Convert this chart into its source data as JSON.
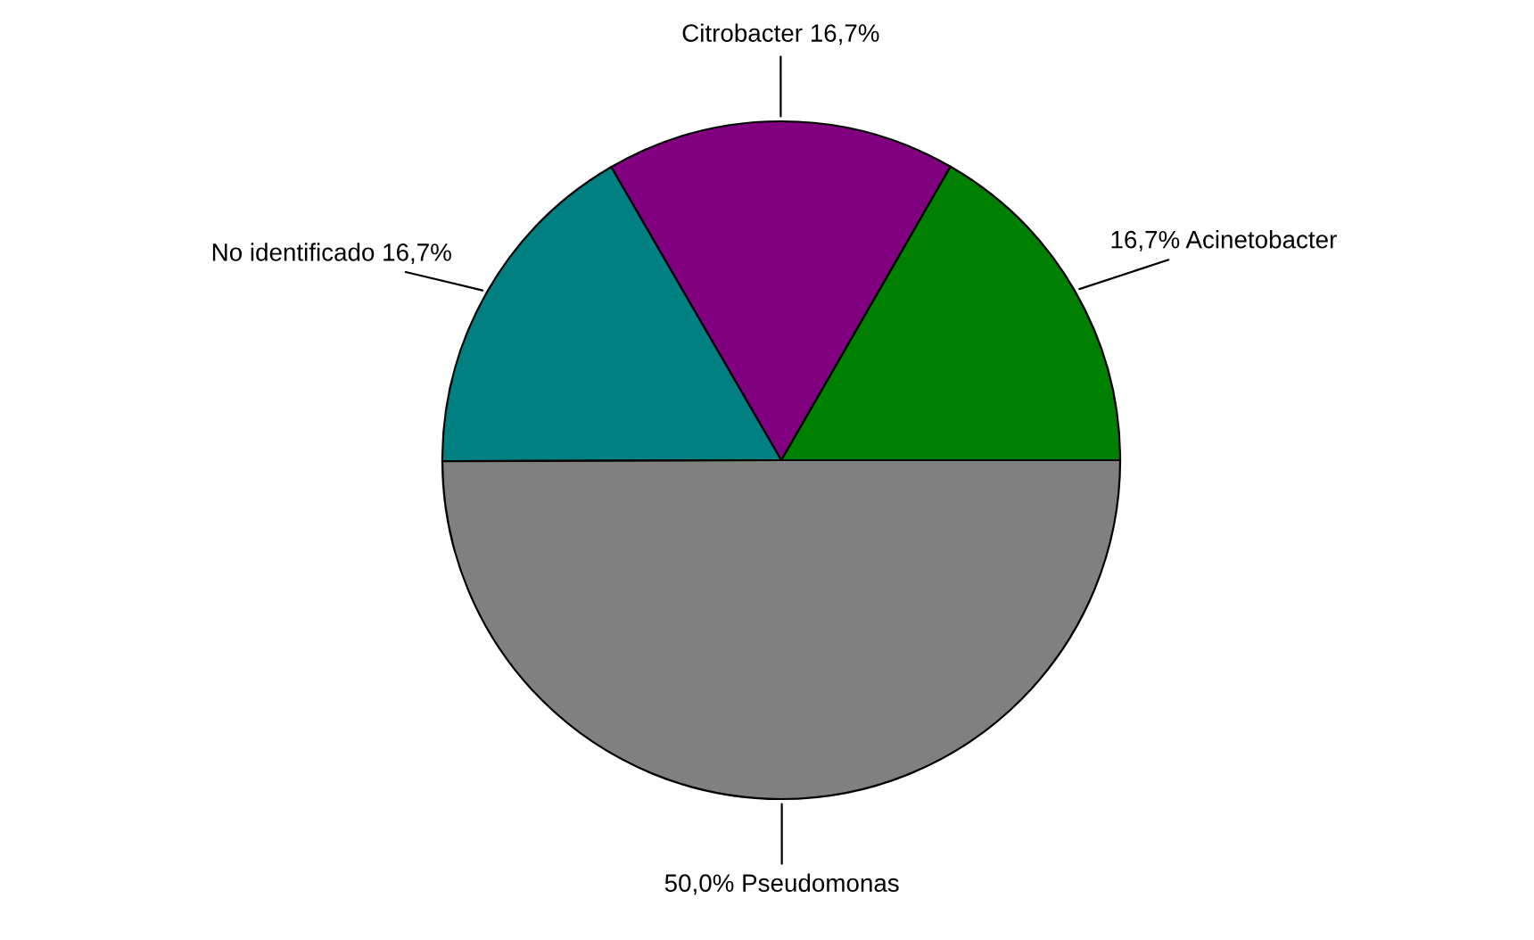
{
  "chart_data": {
    "type": "pie",
    "categories": [
      "Acinetobacter",
      "Citrobacter",
      "No identificado",
      "Pseudomonas"
    ],
    "values": [
      16.7,
      16.7,
      16.7,
      50.0
    ],
    "value_labels": [
      "16,7%",
      "16,7%",
      "16,7%",
      "50,0%"
    ],
    "colors": [
      "#008000",
      "#800080",
      "#008080",
      "#808080"
    ]
  }
}
